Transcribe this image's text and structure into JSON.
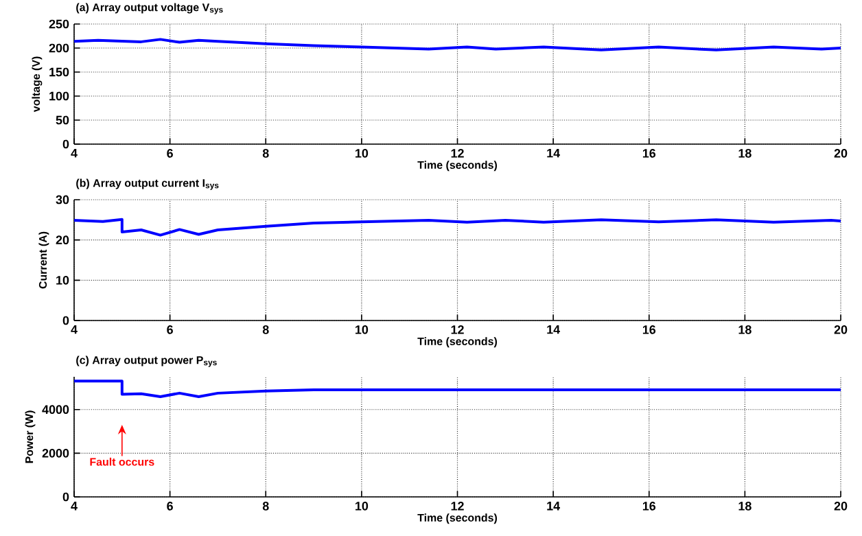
{
  "chart_data": [
    {
      "type": "line",
      "title": "(a) Array output voltage V$_{sys}$",
      "xlabel": "Time (seconds)",
      "ylabel": "voltage (V)",
      "x": [
        4,
        4.5,
        5.4,
        5.8,
        6.2,
        6.6,
        7,
        8,
        9,
        10,
        11.4,
        12.2,
        12.8,
        13.8,
        15,
        16.2,
        17.4,
        18.6,
        19.6,
        20
      ],
      "series": [
        {
          "color": "#0000ff",
          "values": [
            214,
            216,
            213,
            218,
            212,
            216,
            214,
            209,
            205,
            202,
            198,
            202,
            198,
            202,
            196,
            202,
            196,
            202,
            198,
            200
          ]
        }
      ],
      "xlim": [
        4,
        20
      ],
      "xticks": [
        4,
        6,
        8,
        10,
        12,
        14,
        16,
        18,
        20
      ],
      "ylim": [
        0,
        250
      ],
      "yticks": [
        0,
        50,
        100,
        150,
        200,
        250
      ],
      "grid": true
    },
    {
      "type": "line",
      "title": "(b) Array output current I$_{sys}$",
      "xlabel": "Time (seconds)",
      "ylabel": "Current (A)",
      "x": [
        4,
        4.6,
        5,
        5,
        5.4,
        5.8,
        6.2,
        6.6,
        7,
        8,
        9,
        10,
        11.4,
        12.2,
        13,
        13.8,
        15,
        16.2,
        17.4,
        18.6,
        19.8,
        20
      ],
      "series": [
        {
          "color": "#0000ff",
          "values": [
            24.9,
            24.6,
            25.1,
            22.0,
            22.5,
            21.2,
            22.6,
            21.4,
            22.5,
            23.4,
            24.2,
            24.5,
            24.9,
            24.4,
            24.9,
            24.4,
            25.0,
            24.5,
            25.0,
            24.4,
            24.9,
            24.7
          ]
        }
      ],
      "xlim": [
        4,
        20
      ],
      "xticks": [
        4,
        6,
        8,
        10,
        12,
        14,
        16,
        18,
        20
      ],
      "ylim": [
        0,
        30
      ],
      "yticks": [
        0,
        10,
        20,
        30
      ],
      "grid": true
    },
    {
      "type": "line",
      "title": "(c) Array output power P$_{sys}$",
      "xlabel": "Time (seconds)",
      "ylabel": "Power (W)",
      "x": [
        4,
        5,
        5,
        5.4,
        5.8,
        6.2,
        6.6,
        7,
        8,
        9,
        10,
        12,
        14,
        16,
        18,
        20
      ],
      "series": [
        {
          "color": "#0000ff",
          "values": [
            5300,
            5300,
            4700,
            4720,
            4590,
            4750,
            4590,
            4750,
            4850,
            4900,
            4900,
            4900,
            4900,
            4900,
            4900,
            4900
          ]
        }
      ],
      "xlim": [
        4,
        20
      ],
      "xticks": [
        4,
        6,
        8,
        10,
        12,
        14,
        16,
        18,
        20
      ],
      "ylim": [
        0,
        5500
      ],
      "yticks": [
        0,
        2000,
        4000
      ],
      "grid": true,
      "annotations": [
        "Fault occurs"
      ]
    }
  ]
}
